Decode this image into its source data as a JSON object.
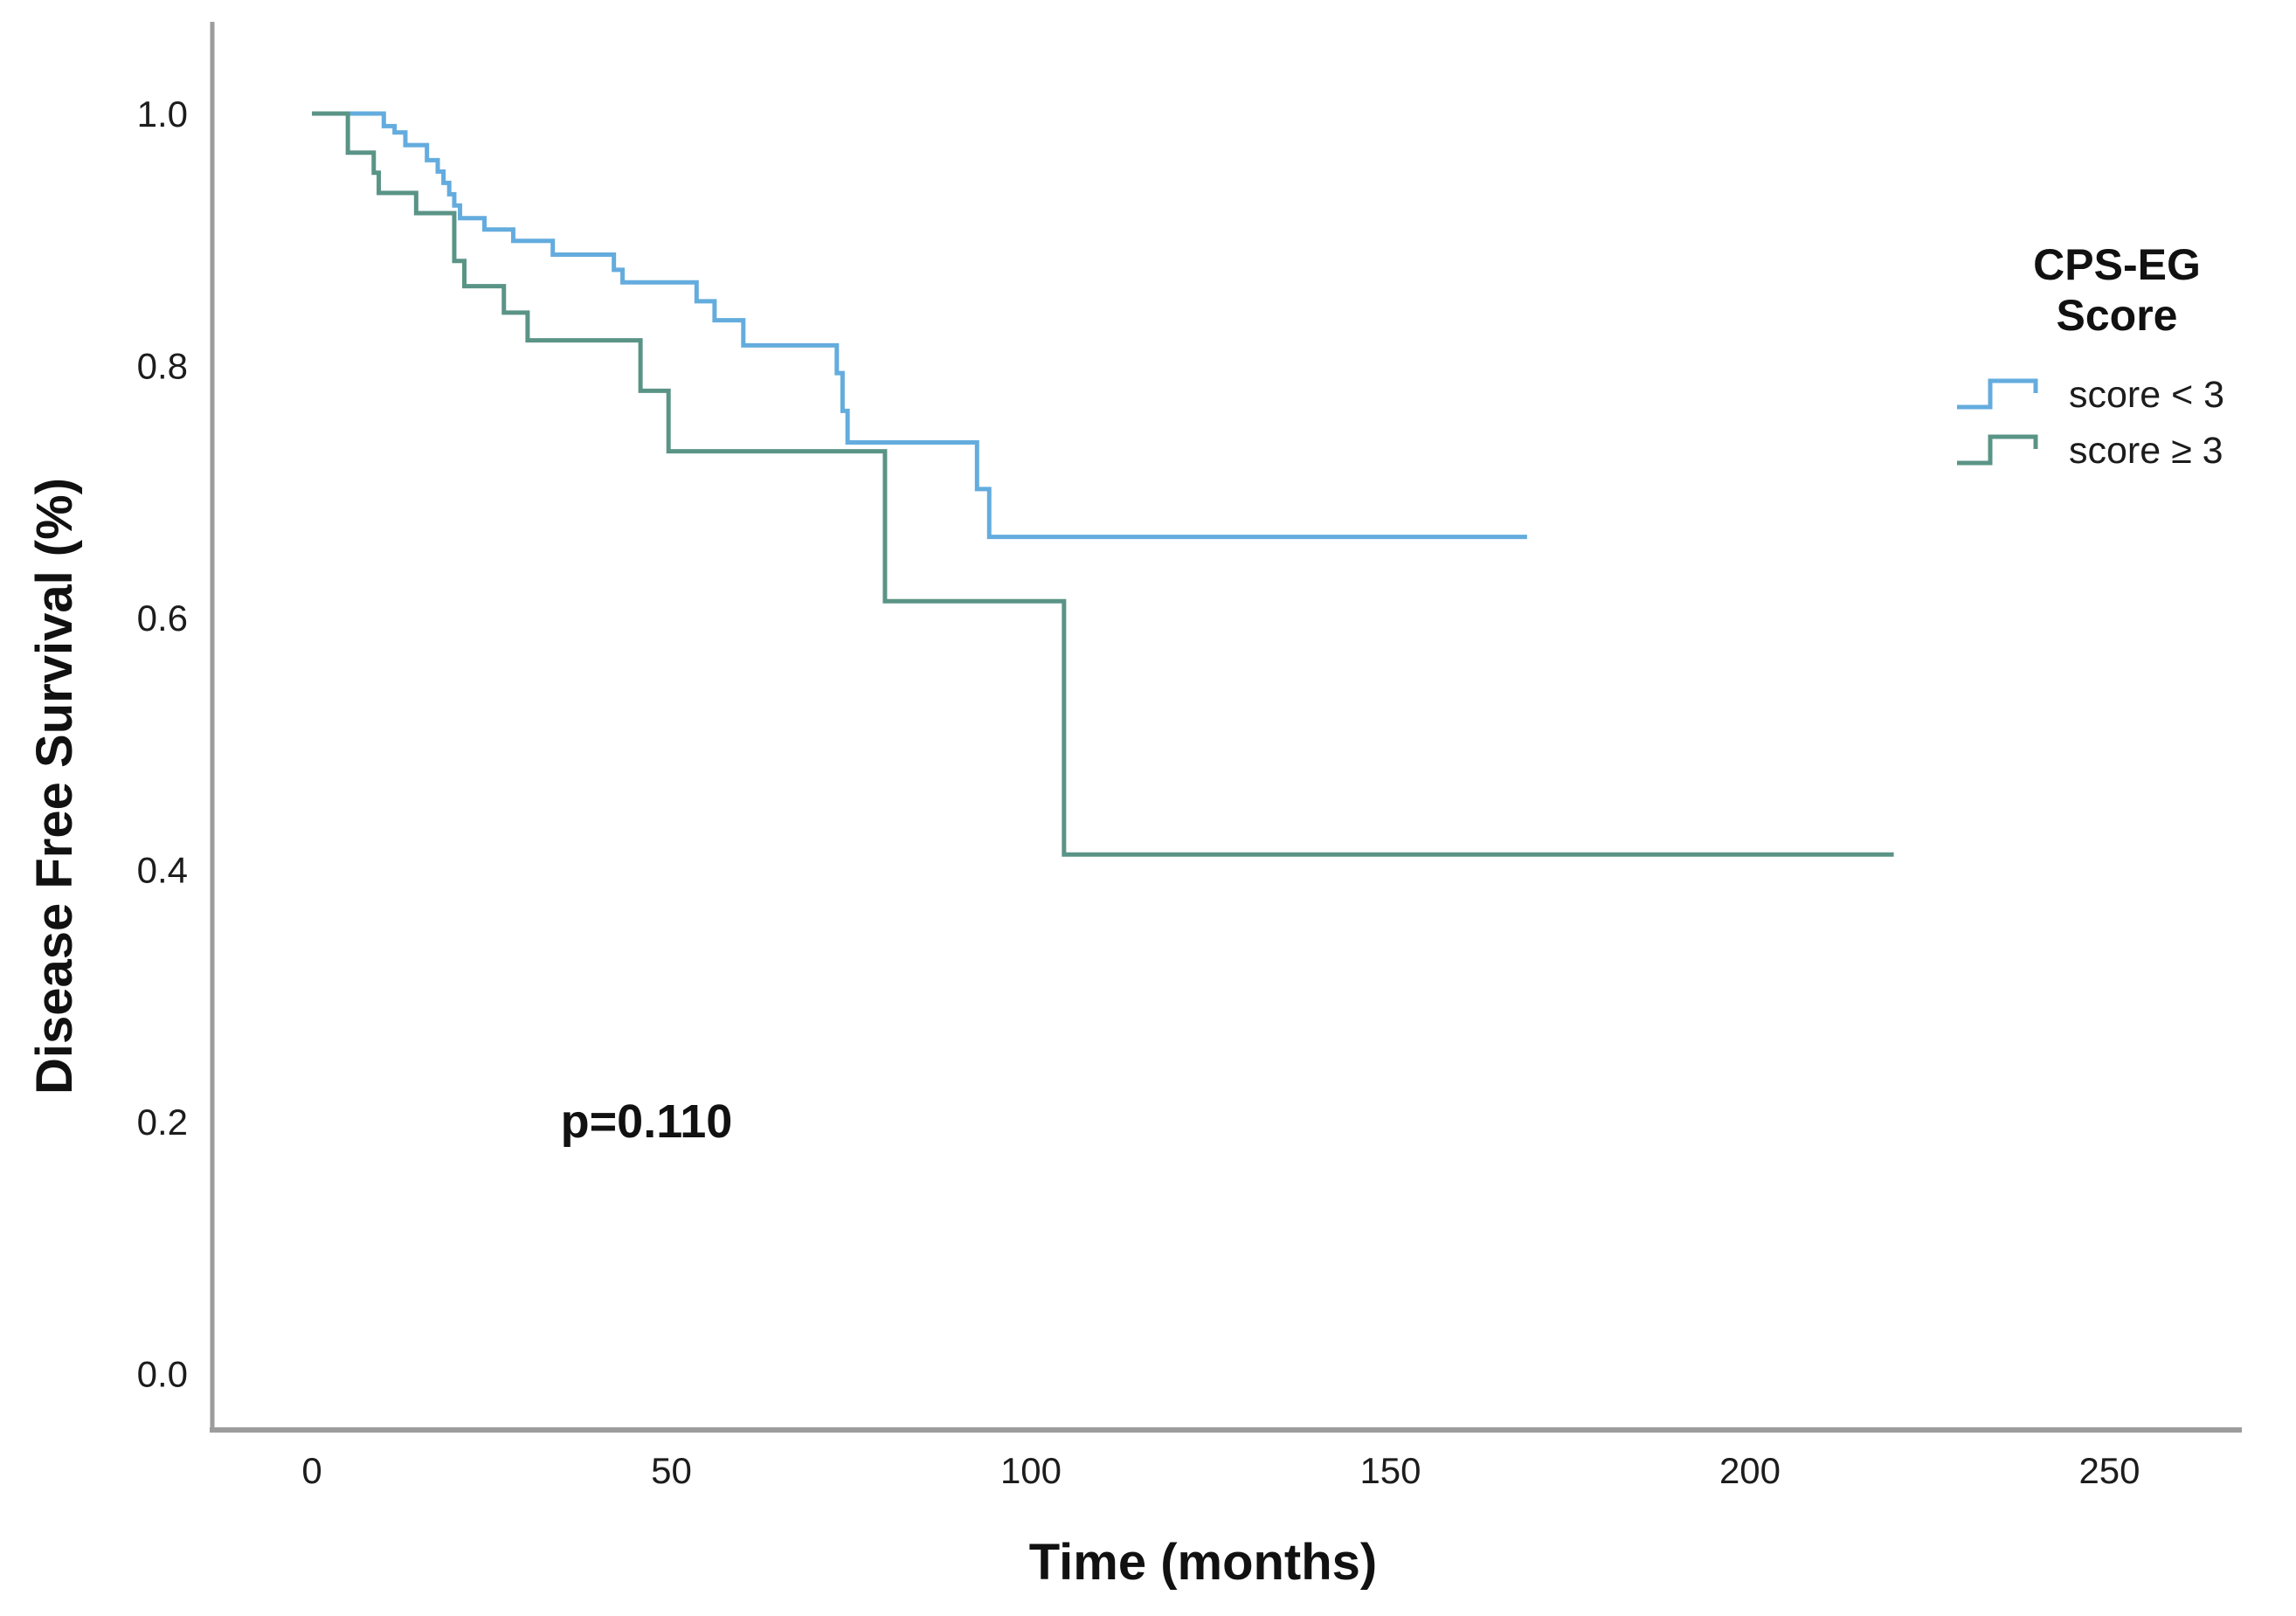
{
  "chart_data": {
    "type": "line",
    "subtype": "kaplan-meier-step",
    "title": "",
    "xlabel": "Time (months)",
    "ylabel": "Disease Free Survival (%)",
    "x_ticks": [
      0,
      50,
      100,
      150,
      200,
      250
    ],
    "y_ticks": [
      "0.0",
      "0.2",
      "0.4",
      "0.6",
      "0.8",
      "1.0"
    ],
    "xlim": [
      -14,
      268
    ],
    "ylim": [
      -0.045,
      1.073
    ],
    "grid": false,
    "axis_color": "#9c9c9c",
    "annotation": {
      "text": "p=0.110",
      "t": 46,
      "v": 0.21
    },
    "legend": {
      "position": "right",
      "title_line1": "CPS-EG",
      "title_line2": "Score"
    },
    "series": [
      {
        "name": "score < 3",
        "color": "#64acde",
        "end_time": 169,
        "step_points": [
          [
            0,
            1.0
          ],
          [
            10,
            0.99
          ],
          [
            11.5,
            0.985
          ],
          [
            13,
            0.975
          ],
          [
            16,
            0.963
          ],
          [
            17.5,
            0.954
          ],
          [
            18.3,
            0.945
          ],
          [
            19.1,
            0.936
          ],
          [
            19.8,
            0.927
          ],
          [
            20.6,
            0.917
          ],
          [
            24,
            0.908
          ],
          [
            28,
            0.899
          ],
          [
            33.5,
            0.888
          ],
          [
            42,
            0.876
          ],
          [
            43.2,
            0.866
          ],
          [
            53.5,
            0.851
          ],
          [
            56,
            0.836
          ],
          [
            60,
            0.816
          ],
          [
            73,
            0.794
          ],
          [
            73.8,
            0.764
          ],
          [
            74.5,
            0.739
          ],
          [
            92.5,
            0.702
          ],
          [
            94.2,
            0.664
          ]
        ]
      },
      {
        "name": "score ≥ 3",
        "color": "#5a9486",
        "end_time": 220,
        "step_points": [
          [
            0,
            1.0
          ],
          [
            5,
            0.969
          ],
          [
            8.6,
            0.953
          ],
          [
            9.3,
            0.937
          ],
          [
            14.5,
            0.921
          ],
          [
            19.8,
            0.883
          ],
          [
            21.2,
            0.863
          ],
          [
            26.7,
            0.842
          ],
          [
            30,
            0.82
          ],
          [
            45.7,
            0.78
          ],
          [
            49.6,
            0.732
          ],
          [
            79.7,
            0.613
          ],
          [
            104.6,
            0.412
          ]
        ]
      }
    ]
  }
}
